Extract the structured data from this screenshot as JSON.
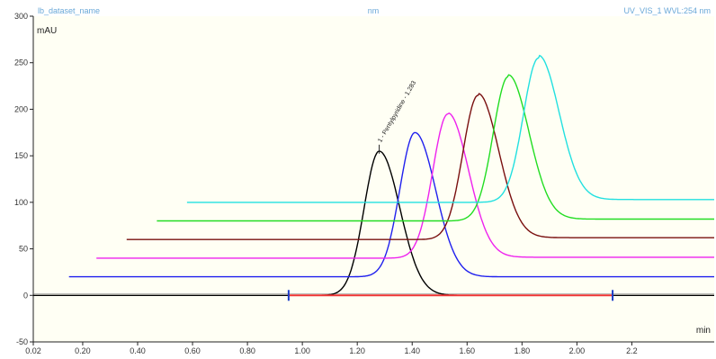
{
  "header": {
    "left": "lb_dataset_name",
    "center": "nm",
    "right": "UV_VIS_1 WVL:254 nm"
  },
  "chart_data": {
    "type": "line",
    "title": "",
    "xlabel": "min",
    "ylabel": "mAU",
    "xlim": [
      0.02,
      2.5
    ],
    "ylim": [
      -50,
      300
    ],
    "x_ticks": [
      "0.02",
      "0.20",
      "0.40",
      "0.60",
      "0.80",
      "1.00",
      "1.20",
      "1.40",
      "1.60",
      "1.80",
      "2.00",
      "2.2"
    ],
    "y_ticks": [
      "-50",
      "0",
      "50",
      "100",
      "150",
      "200",
      "250",
      "300"
    ],
    "grid": false,
    "background": "#fffff4",
    "series": [
      {
        "color": "#000000",
        "x_start": 0.02,
        "baseline_left": 0,
        "baseline_right": 0,
        "peak_x": 1.28,
        "peak_y": 155
      },
      {
        "color": "#2020ee",
        "x_start": 0.15,
        "baseline_left": 20,
        "baseline_right": 20,
        "peak_x": 1.41,
        "peak_y": 175
      },
      {
        "color": "#ee22ee",
        "x_start": 0.25,
        "baseline_left": 40,
        "baseline_right": 41,
        "peak_x": 1.53,
        "peak_y": 195
      },
      {
        "color": "#7a1010",
        "x_start": 0.36,
        "baseline_left": 60,
        "baseline_right": 62,
        "peak_x": 1.64,
        "peak_y": 215
      },
      {
        "color": "#22dd22",
        "x_start": 0.47,
        "baseline_left": 80,
        "baseline_right": 82,
        "peak_x": 1.75,
        "peak_y": 235
      },
      {
        "color": "#22e0e0",
        "x_start": 0.58,
        "baseline_left": 100,
        "baseline_right": 103,
        "peak_x": 1.86,
        "peak_y": 255
      }
    ],
    "integration_baseline": {
      "color": "#ee3333",
      "x_start": 0.95,
      "x_end": 2.13,
      "y": 0
    },
    "markers": [
      {
        "x": 0.95,
        "color": "#1a3cc8"
      },
      {
        "x": 2.13,
        "color": "#1a3cc8"
      }
    ],
    "peak_label": {
      "text": "1 - Pentylpyridine - 1.283",
      "x": 1.28,
      "y": 160
    }
  }
}
